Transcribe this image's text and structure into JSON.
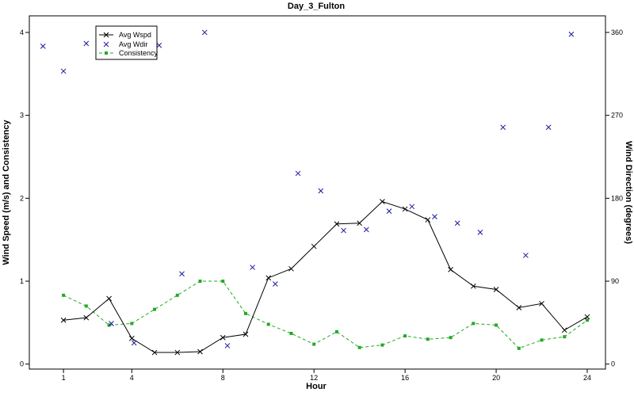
{
  "chart_data": {
    "type": "line",
    "title": "Day_3_Fulton",
    "xlabel": "Hour",
    "ylabel_left": "Wind Speed (m/s) and Consistency",
    "ylabel_right": "Wind Direction (degrees)",
    "xlim": [
      -0.5,
      24.8
    ],
    "ylim_left": [
      -0.06,
      4.2
    ],
    "ylim_right": [
      -5.4,
      378
    ],
    "x_ticks": [
      1,
      4,
      8,
      12,
      16,
      20,
      24
    ],
    "y_ticks_left": [
      0,
      1,
      2,
      3,
      4
    ],
    "y_ticks_right": [
      0,
      90,
      180,
      270,
      360
    ],
    "legend_position": "top-left",
    "colors": {
      "wspd": "#000000",
      "wdir": "#1a1aa0",
      "consistency": "#22aa22"
    },
    "series": [
      {
        "name": "Avg Wspd",
        "axis": "left",
        "style": "solid-line-x-markers",
        "x": [
          1,
          2,
          3,
          4,
          5,
          6,
          7,
          8,
          9,
          10,
          11,
          12,
          13,
          14,
          15,
          16,
          17,
          18,
          19,
          20,
          21,
          22,
          23,
          24
        ],
        "values": [
          0.53,
          0.56,
          0.79,
          0.31,
          0.14,
          0.14,
          0.15,
          0.32,
          0.36,
          1.04,
          1.15,
          1.42,
          1.69,
          1.7,
          1.96,
          1.87,
          1.74,
          1.14,
          0.94,
          0.9,
          0.68,
          0.73,
          0.41,
          0.57
        ]
      },
      {
        "name": "Avg Wdir",
        "axis": "right",
        "style": "x-markers",
        "x": [
          0.1,
          1.0,
          2.0,
          3.1,
          4.1,
          5.2,
          6.2,
          7.2,
          8.2,
          9.3,
          10.3,
          11.3,
          12.3,
          13.3,
          14.3,
          15.3,
          16.3,
          17.3,
          18.3,
          19.3,
          20.3,
          21.3,
          22.3,
          23.3
        ],
        "values": [
          345,
          318,
          348,
          44,
          23,
          346,
          98,
          360,
          20,
          105,
          87,
          207,
          188,
          145,
          146,
          166,
          171,
          160,
          153,
          143,
          257,
          118,
          257,
          358
        ]
      },
      {
        "name": "Consistency",
        "axis": "left",
        "style": "dashed-line-square-markers",
        "x": [
          1,
          2,
          3,
          4,
          5,
          6,
          7,
          8,
          9,
          10,
          11,
          12,
          13,
          14,
          15,
          16,
          17,
          18,
          19,
          20,
          21,
          22,
          23,
          24
        ],
        "values": [
          0.83,
          0.7,
          0.47,
          0.49,
          0.66,
          0.83,
          1.0,
          1.0,
          0.61,
          0.48,
          0.37,
          0.24,
          0.39,
          0.2,
          0.23,
          0.34,
          0.3,
          0.32,
          0.49,
          0.47,
          0.19,
          0.29,
          0.33,
          0.53
        ]
      }
    ]
  }
}
